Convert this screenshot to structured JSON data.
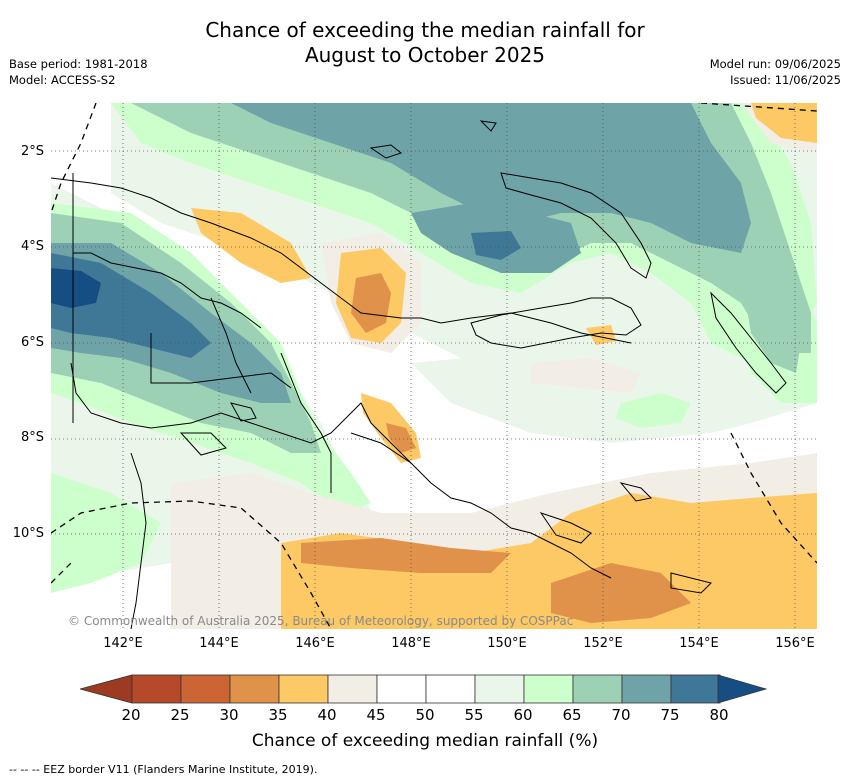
{
  "title_line1": "Chance of exceeding the median rainfall for",
  "title_line2": "August to October 2025",
  "meta_left": [
    "Base period: 1981-2018",
    "Model: ACCESS-S2"
  ],
  "meta_right": [
    "Model run: 09/06/2025",
    "Issued: 11/06/2025"
  ],
  "map": {
    "lon_range": [
      140.4,
      156.4
    ],
    "lat_range": [
      -12.0,
      -1.0
    ],
    "lat_ticks": [
      "2°S",
      "4°S",
      "6°S",
      "8°S",
      "10°S"
    ],
    "lon_ticks": [
      "142°E",
      "144°E",
      "146°E",
      "148°E",
      "150°E",
      "152°E",
      "154°E",
      "156°E"
    ],
    "gridlines": "dotted",
    "copyright": "© Commonwealth of Australia 2025, Bureau of Meteorology, supported by COSPPac"
  },
  "colorbar": {
    "label": "Chance of exceeding median rainfall (%)",
    "ticks": [
      "20",
      "25",
      "30",
      "35",
      "40",
      "45",
      "50",
      "55",
      "60",
      "65",
      "70",
      "75",
      "80"
    ],
    "colors": [
      "#b5492a",
      "#cc6533",
      "#e0914a",
      "#fcc965",
      "#f2eee6",
      "#ffffff",
      "#ffffff",
      "#eaf6ea",
      "#ccffcc",
      "#9dd1b6",
      "#6ea3a8",
      "#3f7896"
    ],
    "below_color": "#9c3b21",
    "above_color": "#164d82"
  },
  "eez_note": "--  --  -- EEZ border V11 (Flanders Marine Institute, 2019)."
}
